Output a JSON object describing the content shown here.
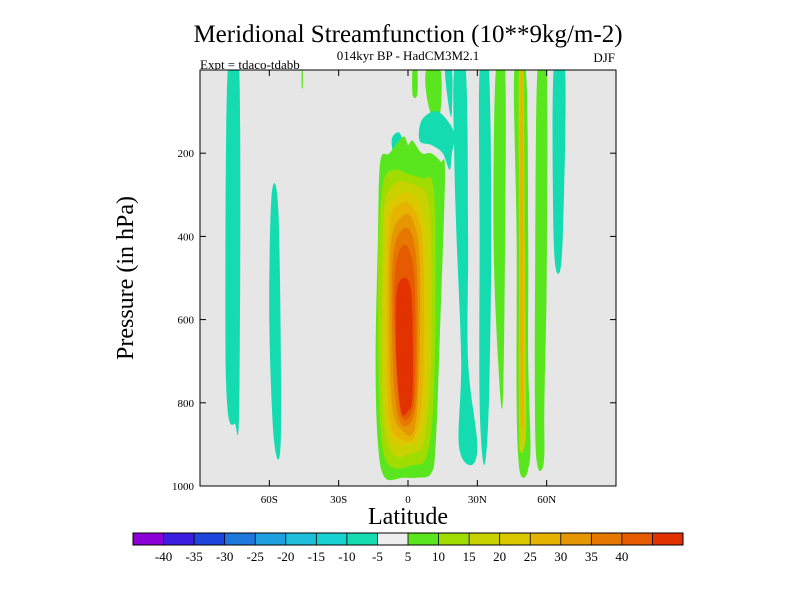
{
  "chart_data": {
    "type": "contour",
    "title": "Meridional Streamfunction (10**9kg/m-2)",
    "subtitle": "014kyr BP - HadCM3M2.1",
    "experiment": "Expt = tdaco-tdabb",
    "season": "DJF",
    "xlabel": "Latitude",
    "ylabel": "Pressure (in hPa)",
    "xlim": [
      -90,
      90
    ],
    "ylim": [
      1000,
      0
    ],
    "x_ticks": [
      {
        "value": -60,
        "label": "60S"
      },
      {
        "value": -30,
        "label": "30S"
      },
      {
        "value": 0,
        "label": "0"
      },
      {
        "value": 30,
        "label": "30N"
      },
      {
        "value": 60,
        "label": "60N"
      }
    ],
    "y_ticks": [
      {
        "value": 200,
        "label": "200"
      },
      {
        "value": 400,
        "label": "400"
      },
      {
        "value": 600,
        "label": "600"
      },
      {
        "value": 800,
        "label": "800"
      },
      {
        "value": 1000,
        "label": "1000"
      }
    ],
    "background_color": "#e6e6e6",
    "colorbar": {
      "colors": [
        "#8a00d6",
        "#3c1ee0",
        "#1e46dc",
        "#1e78dc",
        "#1ea0e0",
        "#1ebedc",
        "#18d2d2",
        "#14dcb0",
        "#eeeeee",
        "#5ae61e",
        "#a0dc00",
        "#c8d200",
        "#dcc800",
        "#e6b400",
        "#e69600",
        "#e67800",
        "#e65a00",
        "#e13200"
      ],
      "labels": [
        "-40",
        "-35",
        "-30",
        "-25",
        "-20",
        "-15",
        "-10",
        "-5",
        "5",
        "10",
        "15",
        "20",
        "25",
        "30",
        "35",
        "40"
      ]
    },
    "contours": [
      {
        "level": -5,
        "color": "#14dcb0",
        "points": [
          [
            -78,
            0
          ],
          [
            -73,
            0
          ],
          [
            -73,
            800
          ],
          [
            -75,
            850
          ],
          [
            -78,
            820
          ],
          [
            -79,
            600
          ]
        ]
      },
      {
        "level": -5,
        "color": "#14dcb0",
        "points": [
          [
            -59,
            300
          ],
          [
            -56,
            350
          ],
          [
            -55,
            880
          ],
          [
            -58,
            890
          ],
          [
            -60,
            600
          ]
        ]
      },
      {
        "level": 5,
        "color": "#5ae61e",
        "points": [
          [
            -46,
            0
          ],
          [
            -45.5,
            0
          ],
          [
            -45.5,
            40
          ],
          [
            -46,
            40
          ]
        ]
      },
      {
        "level": -5,
        "color": "#14dcb0",
        "points": [
          [
            -6,
            200
          ],
          [
            -2,
            180
          ],
          [
            -4,
            150
          ],
          [
            -7,
            165
          ]
        ]
      },
      {
        "level": 5,
        "color": "#5ae61e",
        "points": [
          [
            2,
            0
          ],
          [
            4,
            0
          ],
          [
            4,
            60
          ],
          [
            2,
            60
          ]
        ]
      },
      {
        "level": 5,
        "color": "#5ae61e",
        "points": [
          [
            8,
            0
          ],
          [
            14,
            0
          ],
          [
            14,
            100
          ],
          [
            11,
            120
          ],
          [
            8,
            60
          ]
        ]
      },
      {
        "level": -5,
        "color": "#14dcb0",
        "points": [
          [
            6,
            120
          ],
          [
            13,
            100
          ],
          [
            20,
            150
          ],
          [
            19,
            200
          ],
          [
            18,
            240
          ],
          [
            15,
            200
          ],
          [
            10,
            180
          ],
          [
            5,
            170
          ]
        ]
      },
      {
        "level": -5,
        "color": "#14dcb0",
        "points": [
          [
            16,
            0
          ],
          [
            19,
            0
          ],
          [
            19,
            100
          ],
          [
            18,
            100
          ]
        ]
      },
      {
        "level": -5,
        "color": "#14dcb0",
        "points": [
          [
            20,
            0
          ],
          [
            25,
            0
          ],
          [
            26,
            400
          ],
          [
            26,
            700
          ],
          [
            30,
            900
          ],
          [
            27,
            950
          ],
          [
            22,
            900
          ],
          [
            23,
            700
          ],
          [
            21,
            400
          ],
          [
            20,
            200
          ]
        ]
      },
      {
        "level": -5,
        "color": "#14dcb0",
        "points": [
          [
            31,
            0
          ],
          [
            35,
            0
          ],
          [
            36,
            400
          ],
          [
            35,
            800
          ],
          [
            33,
            950
          ],
          [
            31,
            800
          ],
          [
            31,
            400
          ]
        ]
      },
      {
        "level": 5,
        "color": "#5ae61e",
        "points": [
          [
            38,
            0
          ],
          [
            42,
            0
          ],
          [
            42,
            400
          ],
          [
            41,
            800
          ],
          [
            39,
            700
          ],
          [
            37,
            400
          ]
        ]
      },
      {
        "level": 5,
        "color": "#5ae61e",
        "points": [
          [
            -12,
            220
          ],
          [
            -8,
            200
          ],
          [
            -2,
            160
          ],
          [
            0,
            180
          ],
          [
            2,
            170
          ],
          [
            6,
            200
          ],
          [
            10,
            200
          ],
          [
            14,
            220
          ],
          [
            16,
            250
          ],
          [
            14,
            600
          ],
          [
            12,
            900
          ],
          [
            10,
            970
          ],
          [
            4,
            980
          ],
          [
            -2,
            980
          ],
          [
            -10,
            980
          ],
          [
            -13,
            900
          ],
          [
            -14,
            700
          ],
          [
            -13,
            400
          ]
        ]
      },
      {
        "level": 10,
        "color": "#a0dc00",
        "points": [
          [
            -11,
            280
          ],
          [
            -6,
            240
          ],
          [
            0,
            250
          ],
          [
            6,
            260
          ],
          [
            11,
            280
          ],
          [
            12,
            500
          ],
          [
            11,
            800
          ],
          [
            8,
            930
          ],
          [
            2,
            950
          ],
          [
            -8,
            950
          ],
          [
            -12,
            850
          ],
          [
            -13,
            500
          ]
        ]
      },
      {
        "level": 15,
        "color": "#c8d200",
        "points": [
          [
            -10,
            320
          ],
          [
            -5,
            270
          ],
          [
            2,
            275
          ],
          [
            8,
            300
          ],
          [
            10,
            400
          ],
          [
            10,
            700
          ],
          [
            7,
            890
          ],
          [
            2,
            920
          ],
          [
            -7,
            920
          ],
          [
            -11,
            800
          ],
          [
            -11,
            450
          ]
        ]
      },
      {
        "level": 20,
        "color": "#dcc800",
        "points": [
          [
            -9,
            340
          ],
          [
            -4,
            300
          ],
          [
            2,
            300
          ],
          [
            6,
            340
          ],
          [
            8,
            450
          ],
          [
            8,
            750
          ],
          [
            5,
            880
          ],
          [
            0,
            900
          ],
          [
            -7,
            890
          ],
          [
            -10,
            760
          ],
          [
            -10,
            450
          ]
        ]
      },
      {
        "level": 25,
        "color": "#e6b400",
        "points": [
          [
            -8,
            370
          ],
          [
            -3,
            320
          ],
          [
            2,
            330
          ],
          [
            6,
            400
          ],
          [
            7,
            600
          ],
          [
            6,
            800
          ],
          [
            3,
            880
          ],
          [
            -2,
            890
          ],
          [
            -8,
            840
          ],
          [
            -9,
            600
          ]
        ]
      },
      {
        "level": 30,
        "color": "#e69600",
        "points": [
          [
            -7,
            400
          ],
          [
            -2,
            350
          ],
          [
            2,
            360
          ],
          [
            5,
            450
          ],
          [
            5,
            700
          ],
          [
            3,
            860
          ],
          [
            -2,
            870
          ],
          [
            -7,
            800
          ],
          [
            -8,
            550
          ]
        ]
      },
      {
        "level": 35,
        "color": "#e67800",
        "points": [
          [
            -6,
            430
          ],
          [
            -2,
            380
          ],
          [
            2,
            400
          ],
          [
            4,
            500
          ],
          [
            4,
            750
          ],
          [
            2,
            840
          ],
          [
            -3,
            850
          ],
          [
            -6,
            760
          ],
          [
            -7,
            550
          ]
        ]
      },
      {
        "level": 40,
        "color": "#e65a00",
        "points": [
          [
            -5,
            460
          ],
          [
            -2,
            420
          ],
          [
            1,
            440
          ],
          [
            3,
            520
          ],
          [
            3,
            760
          ],
          [
            1,
            830
          ],
          [
            -3,
            830
          ],
          [
            -5,
            720
          ],
          [
            -6,
            560
          ]
        ]
      },
      {
        "level": 45,
        "color": "#e13200",
        "points": [
          [
            -5,
            540
          ],
          [
            -2,
            500
          ],
          [
            1,
            520
          ],
          [
            2,
            600
          ],
          [
            2,
            780
          ],
          [
            0,
            820
          ],
          [
            -3,
            820
          ],
          [
            -5,
            700
          ]
        ]
      },
      {
        "level": 5,
        "color": "#5ae61e",
        "points": [
          [
            46,
            0
          ],
          [
            51,
            0
          ],
          [
            52,
            400
          ],
          [
            52,
            700
          ],
          [
            53,
            900
          ],
          [
            52,
            960
          ],
          [
            50,
            980
          ],
          [
            48,
            950
          ],
          [
            47,
            800
          ],
          [
            47,
            400
          ]
        ]
      },
      {
        "level": 15,
        "color": "#c8d200",
        "points": [
          [
            48,
            0
          ],
          [
            50,
            0
          ],
          [
            50.5,
            400
          ],
          [
            51,
            750
          ],
          [
            51,
            880
          ],
          [
            49,
            920
          ],
          [
            48,
            850
          ],
          [
            48,
            400
          ]
        ]
      },
      {
        "level": 25,
        "color": "#e6b400",
        "points": [
          [
            48.8,
            0
          ],
          [
            49.6,
            0
          ],
          [
            49.8,
            400
          ],
          [
            50,
            800
          ],
          [
            49.5,
            860
          ],
          [
            48.7,
            800
          ],
          [
            48.6,
            400
          ]
        ]
      },
      {
        "level": 5,
        "color": "#5ae61e",
        "points": [
          [
            56,
            0
          ],
          [
            60,
            0
          ],
          [
            60,
            500
          ],
          [
            59,
            800
          ],
          [
            59,
            920
          ],
          [
            58,
            960
          ],
          [
            56,
            950
          ],
          [
            55,
            850
          ],
          [
            55,
            500
          ]
        ]
      },
      {
        "level": -5,
        "color": "#14dcb0",
        "points": [
          [
            63,
            0
          ],
          [
            68,
            0
          ],
          [
            67,
            400
          ],
          [
            65,
            490
          ],
          [
            63,
            400
          ]
        ]
      }
    ]
  }
}
